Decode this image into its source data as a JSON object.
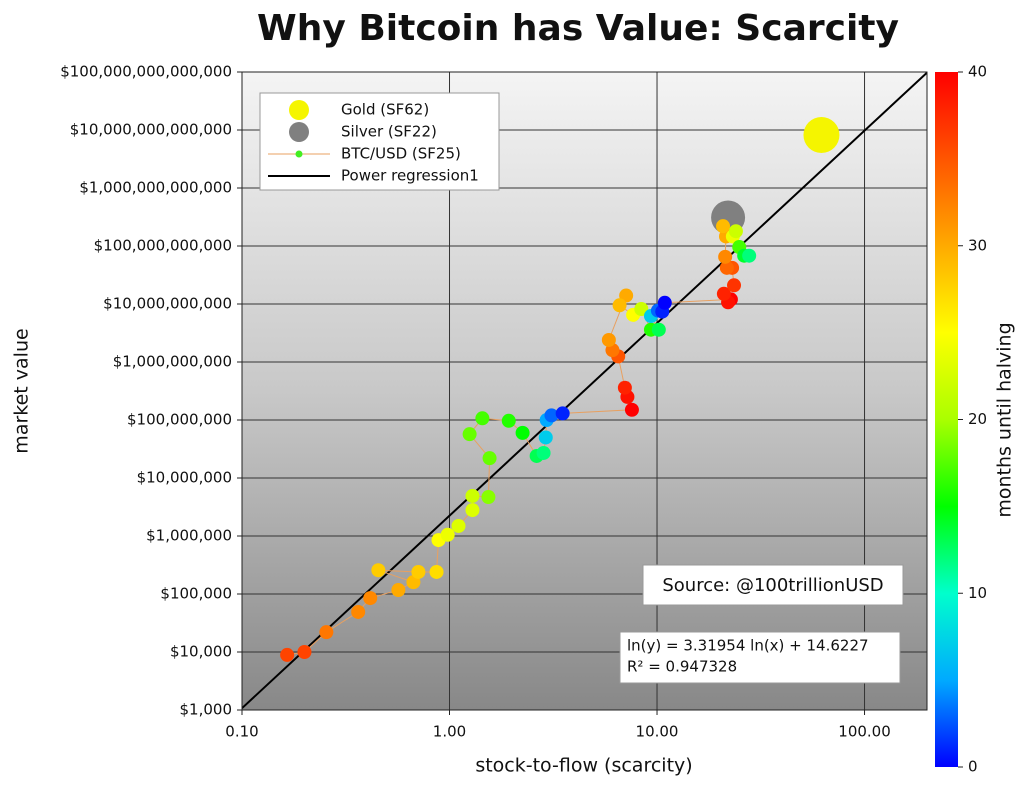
{
  "chart_data": {
    "type": "scatter",
    "title": "Why Bitcoin has Value: Scarcity",
    "x_label": "stock-to-flow (scarcity)",
    "y_label": "market value",
    "log_x": true,
    "log_y": true,
    "grid": true,
    "legend_position": "upper left",
    "xlim": [
      0.1,
      200
    ],
    "ylim": [
      1000,
      100000000000000
    ],
    "xticks": [
      {
        "value": 0.1,
        "label": "0.10"
      },
      {
        "value": 1,
        "label": "1.00"
      },
      {
        "value": 10,
        "label": "10.00"
      },
      {
        "value": 100,
        "label": "100.00"
      }
    ],
    "yticks": [
      {
        "value": 1000,
        "label": "$1,000"
      },
      {
        "value": 10000,
        "label": "$10,000"
      },
      {
        "value": 100000,
        "label": "$100,000"
      },
      {
        "value": 1000000,
        "label": "$1,000,000"
      },
      {
        "value": 10000000,
        "label": "$10,000,000"
      },
      {
        "value": 100000000,
        "label": "$100,000,000"
      },
      {
        "value": 1000000000,
        "label": "$1,000,000,000"
      },
      {
        "value": 10000000000,
        "label": "$10,000,000,000"
      },
      {
        "value": 100000000000,
        "label": "$100,000,000,000"
      },
      {
        "value": 1000000000000,
        "label": "$1,000,000,000,000"
      },
      {
        "value": 10000000000000,
        "label": "$10,000,000,000,000"
      },
      {
        "value": 100000000000000,
        "label": "$100,000,000,000,000"
      }
    ],
    "series": [
      {
        "name": "Gold (SF62)",
        "color": "#f5f500",
        "x": [
          62
        ],
        "values": [
          8200000000000
        ]
      },
      {
        "name": "Silver (SF22)",
        "color": "#808080",
        "x": [
          22
        ],
        "values": [
          310000000000
        ]
      },
      {
        "name": "BTC/USD (SF25)",
        "color": "#e8a060",
        "marker_color": "#44ee22",
        "x": [
          0.165,
          0.2,
          0.255,
          0.363,
          0.415,
          0.567,
          0.67,
          0.454,
          0.708,
          0.866,
          0.885,
          0.98,
          1.105,
          1.29,
          1.29,
          1.54,
          1.56,
          1.25,
          1.44,
          1.93,
          2.25,
          2.63,
          2.84,
          2.91,
          2.94,
          3.1,
          3.51,
          7.57,
          7.2,
          7.0,
          6.5,
          6.1,
          5.86,
          7.1,
          6.6,
          7.67,
          8.4,
          9.35,
          10.2,
          9.35,
          10.1,
          10.6,
          10.9,
          22.7,
          22,
          21,
          23.5,
          23,
          21.7,
          21.3,
          21.5,
          20.8,
          23.2,
          24,
          24.9,
          26.3,
          27.8
        ],
        "values": [
          8900,
          10000,
          22000,
          49000,
          85000,
          117000,
          160000,
          257000,
          240000,
          240000,
          850000,
          1050000,
          1490000,
          2800000,
          4900000,
          4700000,
          22000000,
          57000000,
          107000000,
          97000000,
          60000000,
          24000000,
          27000000,
          50000000,
          100000000,
          120000000,
          130000000,
          150000000,
          250000000,
          360000000,
          1250000000,
          1600000000,
          2400000000,
          14000000000,
          9500000000,
          6500000000,
          8200000000,
          3600000000,
          3600000000,
          6200000000,
          7700000000,
          7400000000,
          10500000000,
          12000000000,
          10700000000,
          15000000000,
          21000000000,
          42000000000,
          42000000000,
          65000000000,
          146000000000,
          220000000000,
          146000000000,
          180000000000,
          96000000000,
          68000000000,
          68000000000
        ],
        "months": [
          36,
          36,
          33,
          32,
          32,
          30,
          29,
          28,
          28,
          27,
          25,
          24,
          23,
          23,
          22,
          19,
          18,
          18,
          17,
          16,
          15,
          13,
          12,
          7,
          5,
          3,
          1,
          40,
          39,
          38,
          35,
          33,
          31,
          30,
          29,
          25,
          22,
          16,
          13,
          7,
          3,
          1,
          0,
          40,
          39,
          38,
          37,
          35,
          34,
          32,
          30,
          29,
          24,
          22,
          17,
          14,
          12
        ]
      }
    ],
    "regression": {
      "name": "Power regression1",
      "color": "#000000",
      "slope": 3.31954,
      "intercept": 14.6227
    },
    "source": "Source: @100trillionUSD",
    "equation": "ln(y) = 3.31954 ln(x) + 14.6227",
    "r_squared": "R² = 0.947328",
    "colorbar": {
      "label": "months until halving",
      "lim": [
        0,
        40
      ],
      "ticks": [
        0,
        10,
        20,
        30,
        40
      ],
      "colors": [
        "#0000ff",
        "#00aaff",
        "#00ffcc",
        "#00ff00",
        "#aaff00",
        "#ffff00",
        "#ffaa00",
        "#ff5500",
        "#ff0000"
      ]
    }
  }
}
